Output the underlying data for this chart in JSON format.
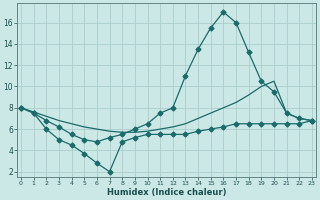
{
  "xlabel": "Humidex (Indice chaleur)",
  "bg_color": "#cce8e6",
  "line_color": "#1a6b6b",
  "grid_color": "#aacece",
  "xlim": [
    -0.3,
    23.3
  ],
  "ylim": [
    1.5,
    17.8
  ],
  "xticks": [
    0,
    1,
    2,
    3,
    4,
    5,
    6,
    7,
    8,
    9,
    10,
    11,
    12,
    13,
    14,
    15,
    16,
    17,
    18,
    19,
    20,
    21,
    22,
    23
  ],
  "yticks": [
    2,
    4,
    6,
    8,
    10,
    12,
    14,
    16
  ],
  "curve1_x": [
    0,
    1,
    2,
    3,
    4,
    5,
    6,
    7,
    8,
    9,
    10,
    11,
    12,
    13,
    14,
    15,
    16,
    17,
    18,
    19,
    20,
    21,
    22,
    23
  ],
  "curve1_y": [
    8.0,
    7.5,
    6.8,
    6.2,
    5.5,
    5.0,
    4.8,
    5.2,
    5.5,
    6.0,
    6.5,
    7.5,
    8.0,
    11.0,
    13.5,
    15.5,
    17.0,
    16.0,
    13.2,
    10.5,
    9.5,
    7.5,
    7.0,
    6.8
  ],
  "curve2_x": [
    0,
    1,
    2,
    3,
    4,
    5,
    6,
    7,
    8,
    9,
    10,
    11,
    12,
    13,
    14,
    15,
    16,
    17,
    18,
    19,
    20,
    21,
    22,
    23
  ],
  "curve2_y": [
    8.0,
    7.5,
    6.0,
    5.0,
    4.5,
    3.7,
    2.8,
    2.0,
    4.8,
    5.2,
    5.5,
    5.5,
    5.5,
    5.5,
    5.8,
    6.0,
    6.2,
    6.5,
    6.5,
    6.5,
    6.5,
    6.5,
    6.5,
    6.8
  ],
  "curve3_x": [
    0,
    1,
    2,
    3,
    4,
    5,
    6,
    7,
    8,
    9,
    10,
    11,
    12,
    13,
    14,
    15,
    16,
    17,
    18,
    19,
    20,
    21,
    22,
    23
  ],
  "curve3_y": [
    8.0,
    7.6,
    7.2,
    6.8,
    6.5,
    6.2,
    6.0,
    5.8,
    5.7,
    5.7,
    5.8,
    6.0,
    6.2,
    6.5,
    7.0,
    7.5,
    8.0,
    8.5,
    9.2,
    10.0,
    10.5,
    7.5,
    7.0,
    6.8
  ]
}
